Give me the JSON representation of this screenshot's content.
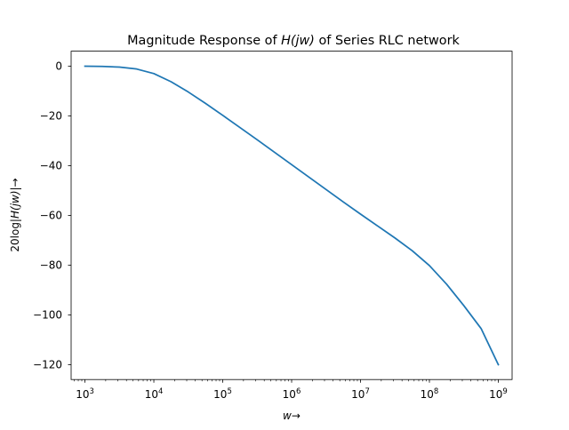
{
  "chart_data": {
    "type": "line",
    "title": {
      "prefix": "Magnitude Response of ",
      "italic": "H(jw)",
      "suffix": " of Series RLC network"
    },
    "xlabel": {
      "italic": "w",
      "arrow": "→"
    },
    "ylabel": {
      "prefix": "20log|",
      "italic": "H(jw)",
      "suffix": "|→"
    },
    "x_scale": "log",
    "xlim": [
      630,
      1585000000
    ],
    "ylim": [
      -126,
      6
    ],
    "x_ticks": [
      {
        "value": 1000,
        "base": "10",
        "exp": "3"
      },
      {
        "value": 10000,
        "base": "10",
        "exp": "4"
      },
      {
        "value": 100000,
        "base": "10",
        "exp": "5"
      },
      {
        "value": 1000000,
        "base": "10",
        "exp": "6"
      },
      {
        "value": 10000000,
        "base": "10",
        "exp": "7"
      },
      {
        "value": 100000000,
        "base": "10",
        "exp": "8"
      },
      {
        "value": 1000000000,
        "base": "10",
        "exp": "9"
      }
    ],
    "y_ticks": [
      0,
      -20,
      -40,
      -60,
      -80,
      -100,
      -120
    ],
    "y_tick_labels": [
      "0",
      "−20",
      "−40",
      "−60",
      "−80",
      "−100",
      "−120"
    ],
    "grid": false,
    "series": [
      {
        "color": "#1f77b4",
        "x": [
          1000,
          1778,
          3162,
          5623,
          10000,
          17783,
          31623,
          56234,
          100000,
          177828,
          316228,
          562341,
          1000000,
          1778279,
          3162278,
          5623413,
          10000000,
          17782794,
          31622777,
          56234133,
          100000000,
          177827941,
          316227766,
          562341325,
          1000000000
        ],
        "values": [
          -0.04,
          -0.13,
          -0.41,
          -1.17,
          -3.01,
          -6.28,
          -10.41,
          -15.0,
          -19.8,
          -24.7,
          -29.6,
          -34.6,
          -39.6,
          -44.6,
          -49.6,
          -54.6,
          -59.5,
          -64.3,
          -69.1,
          -74.2,
          -80.2,
          -87.7,
          -96.3,
          -105.5,
          -120.0
        ]
      }
    ]
  }
}
